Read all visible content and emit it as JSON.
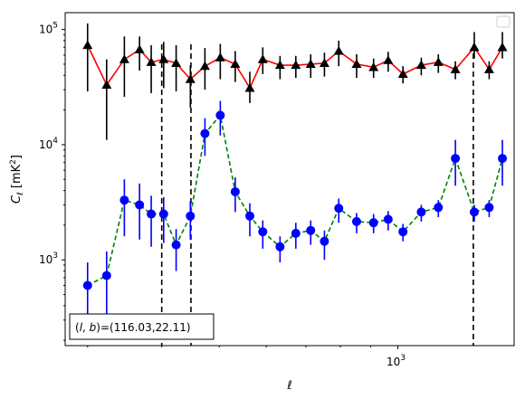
{
  "chart_data": {
    "type": "scatter",
    "title": "",
    "xlabel": "ℓ",
    "ylabel": "C_ℓ  [mK²]",
    "xscale": "log",
    "yscale": "log",
    "xlim": [
      275,
      1570
    ],
    "ylim": [
      180,
      140000
    ],
    "x_tick_labels": [
      {
        "value": 1000,
        "base": "10",
        "exp": "3"
      }
    ],
    "y_tick_labels": [
      {
        "value": 1000,
        "base": "10",
        "exp": "3"
      },
      {
        "value": 10000,
        "base": "10",
        "exp": "4"
      },
      {
        "value": 100000,
        "base": "10",
        "exp": "5"
      }
    ],
    "vlines": [
      400,
      448,
      1340
    ],
    "legend": {
      "placement": "top-right",
      "entries": []
    },
    "annotation": {
      "text": "(l, b)=(116.03,22.11)",
      "placement": "bottom-left"
    },
    "series": [
      {
        "color": "#ff0000",
        "line_style": "solid",
        "marker": "triangle",
        "marker_color": "#000000",
        "errorbar_color": "#000000",
        "x": [
          300,
          323,
          346,
          367,
          384,
          403,
          423,
          447,
          473,
          502,
          532,
          563,
          592,
          633,
          673,
          713,
          752,
          795,
          852,
          910,
          963,
          1020,
          1095,
          1170,
          1250,
          1345,
          1425,
          1500
        ],
        "y": [
          73000,
          33000,
          55000,
          67000,
          52000,
          55000,
          51000,
          37000,
          48000,
          57000,
          50000,
          31000,
          55000,
          49000,
          49000,
          50000,
          51000,
          65000,
          50000,
          47000,
          54000,
          41000,
          49000,
          52000,
          45000,
          70000,
          45000,
          70000
        ],
        "yerr_low": [
          44000,
          22000,
          29000,
          23000,
          24000,
          24000,
          22000,
          16000,
          18000,
          20000,
          15000,
          8000,
          14000,
          12000,
          11000,
          12000,
          12000,
          17000,
          12000,
          9000,
          11000,
          7000,
          9000,
          10000,
          8000,
          14000,
          8000,
          14000
        ],
        "yerr_high": [
          40000,
          22000,
          32000,
          20000,
          21000,
          23000,
          22000,
          12000,
          21000,
          18000,
          15000,
          12000,
          15000,
          10000,
          10000,
          11000,
          12000,
          15000,
          11000,
          9000,
          10000,
          7000,
          8000,
          9000,
          8000,
          25000,
          8000,
          25000
        ]
      },
      {
        "color": "#008000",
        "line_style": "dashed",
        "marker": "circle",
        "marker_color": "#0000ff",
        "errorbar_color": "#0000ff",
        "x": [
          300,
          323,
          346,
          367,
          384,
          403,
          423,
          447,
          473,
          502,
          532,
          563,
          592,
          633,
          673,
          713,
          752,
          795,
          852,
          910,
          963,
          1020,
          1095,
          1170,
          1250,
          1345,
          1425,
          1500
        ],
        "y": [
          600,
          730,
          3300,
          3000,
          2500,
          2500,
          1350,
          2400,
          12500,
          18000,
          3900,
          2400,
          1750,
          1300,
          1700,
          1800,
          1450,
          2800,
          2150,
          2100,
          2250,
          1750,
          2600,
          2850,
          7600,
          2600,
          2850,
          7600
        ],
        "yerr_low": [
          300,
          400,
          1700,
          1500,
          1200,
          1100,
          550,
          900,
          4500,
          6000,
          1300,
          800,
          500,
          350,
          450,
          450,
          450,
          700,
          450,
          400,
          450,
          300,
          450,
          500,
          3200,
          450,
          500,
          3200
        ],
        "yerr_high": [
          350,
          450,
          1700,
          1600,
          1100,
          1000,
          500,
          850,
          4500,
          6000,
          1300,
          700,
          450,
          300,
          400,
          400,
          350,
          600,
          400,
          400,
          400,
          300,
          400,
          450,
          3400,
          400,
          450,
          3400
        ]
      }
    ]
  }
}
